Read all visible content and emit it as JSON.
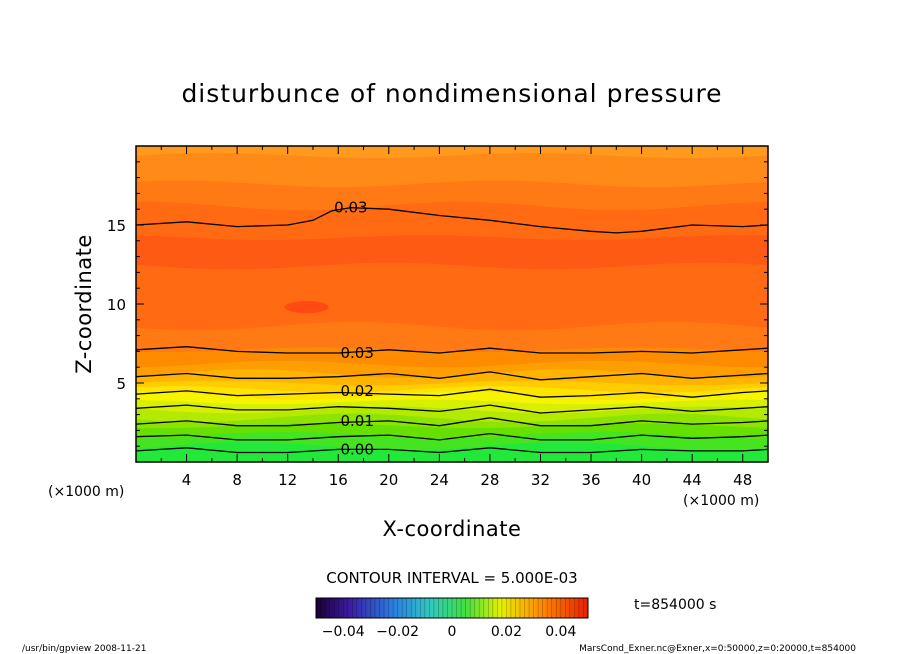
{
  "chart_data": {
    "type": "contour",
    "title": "disturbunce of nondimensional pressure",
    "xlabel": "X-coordinate",
    "ylabel": "Z-coordinate",
    "x_units_left": "(×1000 m)",
    "x_units_right": "(×1000 m)",
    "xlim": [
      0,
      50
    ],
    "ylim": [
      0,
      20
    ],
    "x_ticks": [
      4,
      8,
      12,
      16,
      20,
      24,
      28,
      32,
      36,
      40,
      44,
      48
    ],
    "y_ticks": [
      5,
      10,
      15
    ],
    "contour_interval_text": "CONTOUR INTERVAL = 5.000E-03",
    "time_text": "t=854000 s",
    "contour_labels": [
      {
        "text": "0.03",
        "x": 17,
        "z": 16.1
      },
      {
        "text": "0.03",
        "x": 17.5,
        "z": 6.9
      },
      {
        "text": "0.02",
        "x": 17.5,
        "z": 4.5
      },
      {
        "text": "0.01",
        "x": 17.5,
        "z": 2.6
      },
      {
        "text": "0.00",
        "x": 17.5,
        "z": 0.8
      }
    ],
    "colorbar": {
      "range": [
        -0.05,
        0.05
      ],
      "tick_values": [
        -0.04,
        -0.02,
        0,
        0.02,
        0.04
      ],
      "tick_labels": [
        "−0.04",
        "−0.02",
        "0",
        "0.02",
        "0.04"
      ]
    }
  },
  "footer": {
    "left": "/usr/bin/gpview  2008-11-21",
    "right": "MarsCond_Exner.nc@Exner,x=0:50000,z=0:20000,t=854000"
  },
  "colors": {
    "band_bottom": "#22e83a",
    "band_yellow": "#f6f400",
    "band_orange": "#ff8c00",
    "band_core": "#ff5a14"
  }
}
